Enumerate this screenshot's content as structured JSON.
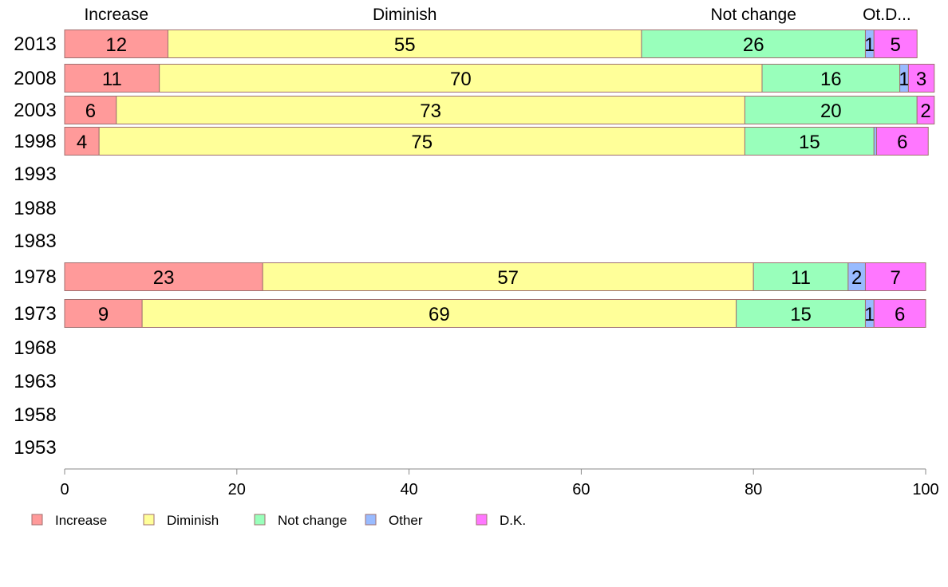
{
  "chart_data": {
    "type": "bar",
    "orientation": "horizontal",
    "stacked": true,
    "categories": [
      "2013",
      "2008",
      "2003",
      "1998",
      "1993",
      "1988",
      "1983",
      "1978",
      "1973",
      "1968",
      "1963",
      "1958",
      "1953"
    ],
    "series": [
      {
        "name": "Increase",
        "color": "#ff9a9a",
        "values": [
          12,
          11,
          6,
          4,
          null,
          null,
          null,
          23,
          9,
          null,
          null,
          null,
          null
        ]
      },
      {
        "name": "Diminish",
        "color": "#ffff99",
        "values": [
          55,
          70,
          73,
          75,
          null,
          null,
          null,
          57,
          69,
          null,
          null,
          null,
          null
        ]
      },
      {
        "name": "Not change",
        "color": "#99ffbb",
        "values": [
          26,
          16,
          20,
          15,
          null,
          null,
          null,
          11,
          15,
          null,
          null,
          null,
          null
        ]
      },
      {
        "name": "Other",
        "color": "#99bbff",
        "values": [
          1,
          1,
          0,
          0.3,
          null,
          null,
          null,
          2,
          1,
          null,
          null,
          null,
          null
        ]
      },
      {
        "name": "D.K.",
        "color": "#ff77ff",
        "values": [
          5,
          3,
          2,
          6,
          null,
          null,
          null,
          7,
          6,
          null,
          null,
          null,
          null
        ]
      }
    ],
    "segment_labels": [
      [
        "12",
        "55",
        "26",
        "1",
        "5"
      ],
      [
        "11",
        "70",
        "16",
        "1",
        "3"
      ],
      [
        "6",
        "73",
        "20",
        "",
        "2"
      ],
      [
        "4",
        "75",
        "15",
        "",
        "6"
      ],
      null,
      null,
      null,
      [
        "23",
        "57",
        "11",
        "2",
        "7"
      ],
      [
        "9",
        "69",
        "15",
        "1",
        "6"
      ],
      null,
      null,
      null,
      null
    ],
    "column_headers": [
      "Increase",
      "Diminish",
      "Not change",
      "Ot.D..."
    ],
    "xlim": [
      0,
      100
    ],
    "xticks": [
      0,
      20,
      40,
      60,
      80,
      100
    ],
    "title": "",
    "xlabel": "",
    "ylabel": "",
    "grid": false,
    "legend_position": "bottom-left"
  }
}
